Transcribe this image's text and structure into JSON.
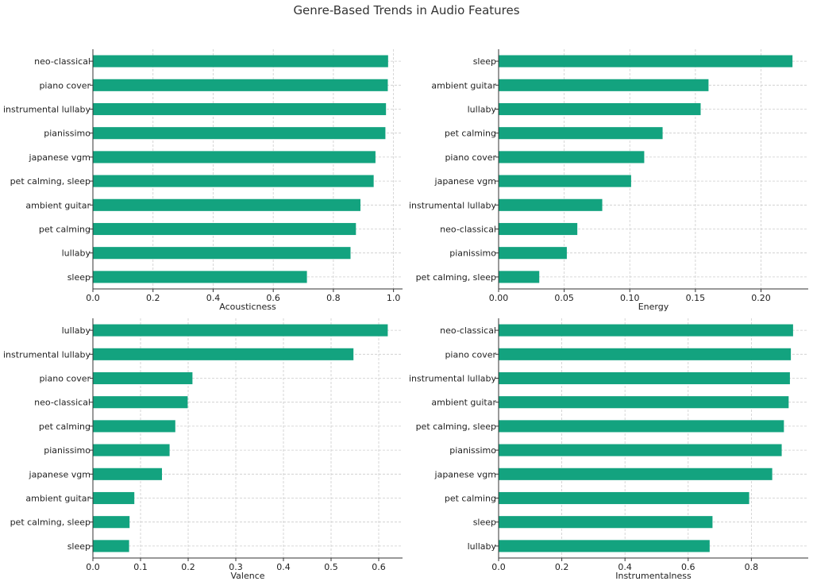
{
  "figure": {
    "title": "Genre-Based Trends in Audio Features"
  },
  "colors": {
    "bar": "#13a37f"
  },
  "chart_data": [
    {
      "type": "bar",
      "orientation": "horizontal",
      "xlabel": "Acousticness",
      "xlim": [
        0,
        1.03
      ],
      "xticks": [
        0.0,
        0.2,
        0.4,
        0.6,
        0.8,
        1.0
      ],
      "xtick_labels": [
        "0.0",
        "0.2",
        "0.4",
        "0.6",
        "0.8",
        "1.0"
      ],
      "categories": [
        "neo-classical",
        "piano cover",
        "instrumental lullaby",
        "pianissimo",
        "japanese vgm",
        "pet calming, sleep",
        "ambient guitar",
        "pet calming",
        "lullaby",
        "sleep"
      ],
      "values": [
        0.982,
        0.981,
        0.975,
        0.973,
        0.94,
        0.934,
        0.89,
        0.875,
        0.857,
        0.712
      ]
    },
    {
      "type": "bar",
      "orientation": "horizontal",
      "xlabel": "Energy",
      "xlim": [
        0,
        0.236
      ],
      "xticks": [
        0.0,
        0.05,
        0.1,
        0.15,
        0.2
      ],
      "xtick_labels": [
        "0.00",
        "0.05",
        "0.10",
        "0.15",
        "0.20"
      ],
      "categories": [
        "sleep",
        "ambient guitar",
        "lullaby",
        "pet calming",
        "piano cover",
        "japanese vgm",
        "instrumental lullaby",
        "neo-classical",
        "pianissimo",
        "pet calming, sleep"
      ],
      "values": [
        0.224,
        0.16,
        0.154,
        0.125,
        0.111,
        0.101,
        0.079,
        0.06,
        0.052,
        0.031
      ]
    },
    {
      "type": "bar",
      "orientation": "horizontal",
      "xlabel": "Valence",
      "xlim": [
        0,
        0.65
      ],
      "xticks": [
        0.0,
        0.1,
        0.2,
        0.3,
        0.4,
        0.5,
        0.6
      ],
      "xtick_labels": [
        "0.0",
        "0.1",
        "0.2",
        "0.3",
        "0.4",
        "0.5",
        "0.6"
      ],
      "categories": [
        "lullaby",
        "instrumental lullaby",
        "piano cover",
        "neo-classical",
        "pet calming",
        "pianissimo",
        "japanese vgm",
        "ambient guitar",
        "pet calming, sleep",
        "sleep"
      ],
      "values": [
        0.619,
        0.547,
        0.209,
        0.199,
        0.173,
        0.161,
        0.145,
        0.087,
        0.077,
        0.076
      ]
    },
    {
      "type": "bar",
      "orientation": "horizontal",
      "xlabel": "Instrumentalness",
      "xlim": [
        0,
        0.98
      ],
      "xticks": [
        0.0,
        0.2,
        0.4,
        0.6,
        0.8
      ],
      "xtick_labels": [
        "0.0",
        "0.2",
        "0.4",
        "0.6",
        "0.8"
      ],
      "categories": [
        "neo-classical",
        "piano cover",
        "instrumental lullaby",
        "ambient guitar",
        "pet calming, sleep",
        "pianissimo",
        "japanese vgm",
        "pet calming",
        "sleep",
        "lullaby"
      ],
      "values": [
        0.932,
        0.925,
        0.922,
        0.918,
        0.903,
        0.896,
        0.866,
        0.793,
        0.677,
        0.668
      ]
    }
  ]
}
